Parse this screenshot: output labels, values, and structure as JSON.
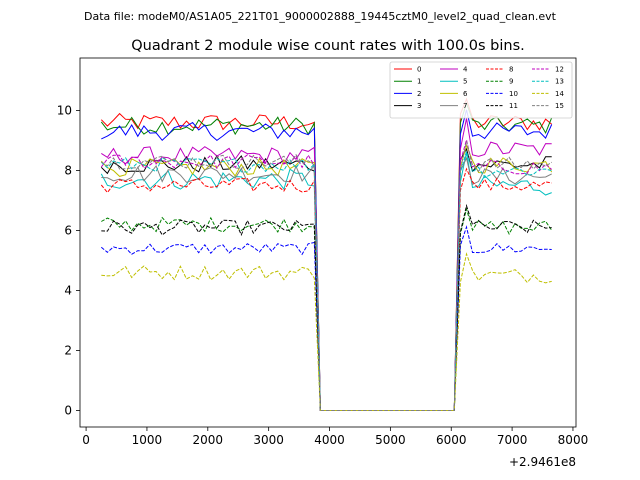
{
  "header": {
    "data_file": "Data file: modeM0/AS1A05_221T01_9000002888_19445cztM0_level2_quad_clean.evt",
    "title": "Quadrant 2 module wise count rates with 100.0s bins."
  },
  "chart_data": {
    "type": "line",
    "title": "Quadrant 2 module wise count rates with 100.0s bins.",
    "xlabel": "",
    "ylabel": "",
    "x_offset_label": "+2.9461e8",
    "xlim": [
      -100,
      8050
    ],
    "ylim": [
      -0.55,
      11.75
    ],
    "x_ticks": [
      0,
      1000,
      2000,
      3000,
      4000,
      5000,
      6000,
      7000,
      8000
    ],
    "y_ticks": [
      0,
      2,
      4,
      6,
      8,
      10
    ],
    "grid": false,
    "legend_placement": "top-right",
    "legend_columns": 4,
    "bin_seconds": 100,
    "gap": [
      3850,
      6050
    ],
    "x": [
      250,
      350,
      450,
      550,
      650,
      750,
      850,
      950,
      1050,
      1150,
      1250,
      1350,
      1450,
      1550,
      1650,
      1750,
      1850,
      1950,
      2050,
      2150,
      2250,
      2350,
      2450,
      2550,
      2650,
      2750,
      2850,
      2950,
      3050,
      3150,
      3250,
      3350,
      3450,
      3550,
      3650,
      3750,
      3850,
      3950,
      4050,
      4150,
      4250,
      4350,
      4450,
      4550,
      4650,
      4750,
      4850,
      4950,
      5050,
      5150,
      5250,
      5350,
      5450,
      5550,
      5650,
      5750,
      5850,
      5950,
      6050,
      6150,
      6250,
      6350,
      6450,
      6550,
      6650,
      6750,
      6850,
      6950,
      7050,
      7150,
      7250,
      7350,
      7450,
      7550,
      7650
    ],
    "series": [
      {
        "name": "0",
        "color": "#ff0000",
        "dash": "solid",
        "base": 9.6,
        "post": 9.6,
        "amp": 0.3
      },
      {
        "name": "1",
        "color": "#008000",
        "dash": "solid",
        "base": 9.5,
        "post": 9.5,
        "amp": 0.3
      },
      {
        "name": "2",
        "color": "#0000ff",
        "dash": "solid",
        "base": 9.3,
        "post": 9.3,
        "amp": 0.3
      },
      {
        "name": "3",
        "color": "#000000",
        "dash": "solid",
        "base": 8.2,
        "post": 8.2,
        "amp": 0.3
      },
      {
        "name": "4",
        "color": "#bf00bf",
        "dash": "solid",
        "base": 8.5,
        "post": 8.7,
        "amp": 0.3
      },
      {
        "name": "5",
        "color": "#00bfbf",
        "dash": "solid",
        "base": 7.7,
        "post": 7.5,
        "amp": 0.35
      },
      {
        "name": "6",
        "color": "#bfbf00",
        "dash": "solid",
        "base": 8.1,
        "post": 8.2,
        "amp": 0.3
      },
      {
        "name": "7",
        "color": "#808080",
        "dash": "solid",
        "base": 7.9,
        "post": 7.8,
        "amp": 0.3
      },
      {
        "name": "8",
        "color": "#ff0000",
        "dash": "dashed",
        "base": 7.5,
        "post": 7.5,
        "amp": 0.25
      },
      {
        "name": "9",
        "color": "#008000",
        "dash": "dashed",
        "base": 6.2,
        "post": 6.1,
        "amp": 0.25
      },
      {
        "name": "10",
        "color": "#0000ff",
        "dash": "dashed",
        "base": 5.4,
        "post": 5.4,
        "amp": 0.2
      },
      {
        "name": "11",
        "color": "#000000",
        "dash": "dashed",
        "base": 6.1,
        "post": 6.1,
        "amp": 0.25
      },
      {
        "name": "12",
        "color": "#bf00bf",
        "dash": "dashed",
        "base": 8.3,
        "post": 8.1,
        "amp": 0.25
      },
      {
        "name": "13",
        "color": "#00bfbf",
        "dash": "dashed",
        "base": 8.2,
        "post": 8.0,
        "amp": 0.25
      },
      {
        "name": "14",
        "color": "#bfbf00",
        "dash": "dashed",
        "base": 4.6,
        "post": 4.5,
        "amp": 0.25
      },
      {
        "name": "15",
        "color": "#808080",
        "dash": "dashed",
        "base": 8.3,
        "post": 8.2,
        "amp": 0.25
      }
    ]
  }
}
